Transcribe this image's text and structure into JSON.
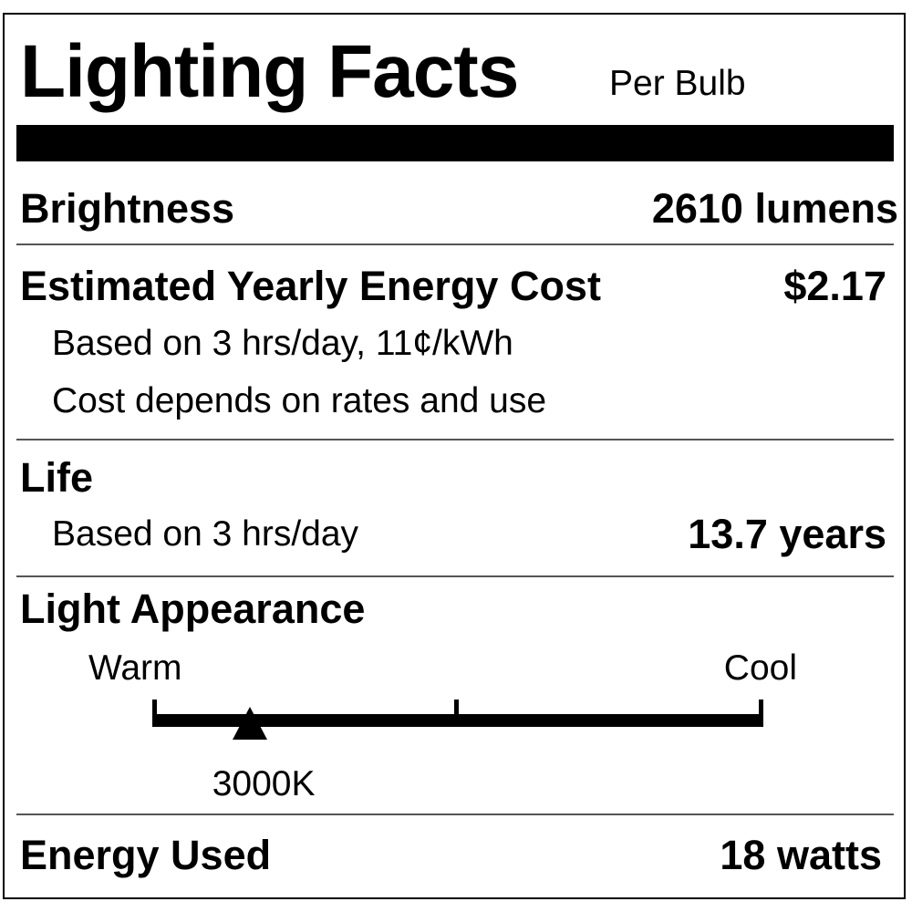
{
  "header": {
    "title": "Lighting Facts",
    "subtitle": "Per Bulb"
  },
  "brightness": {
    "label": "Brightness",
    "value": "2610 lumens"
  },
  "energy_cost": {
    "label": "Estimated Yearly Energy Cost",
    "value": "$2.17",
    "note1": "Based on 3 hrs/day, 11¢/kWh",
    "note2": "Cost depends on rates and use"
  },
  "life": {
    "label": "Life",
    "note": "Based on 3 hrs/day",
    "value": "13.7 years"
  },
  "light_appearance": {
    "label": "Light Appearance",
    "warm_label": "Warm",
    "cool_label": "Cool",
    "value": "3000K",
    "marker_position": 0.16
  },
  "energy_used": {
    "label": "Energy Used",
    "value": "18 watts"
  }
}
